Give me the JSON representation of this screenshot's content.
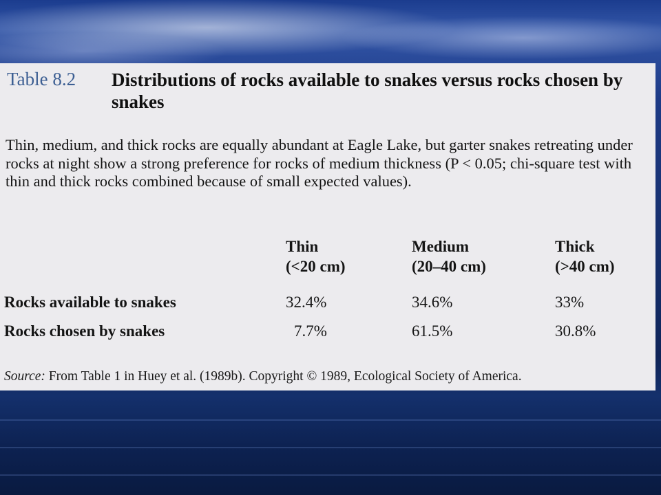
{
  "table": {
    "number": "Table 8.2",
    "title": "Distributions of rocks available to snakes versus rocks chosen by snakes",
    "caption": "Thin, medium, and thick rocks are equally abundant at Eagle Lake, but garter snakes retreating under rocks at night show a strong preference for rocks of medium thickness (P < 0.05; chi-square test with thin and thick rocks combined because of small expected values).",
    "columns": [
      {
        "name": "Thin",
        "range": "(<20 cm)"
      },
      {
        "name": "Medium",
        "range": "(20–40 cm)"
      },
      {
        "name": "Thick",
        "range": "(>40 cm)"
      }
    ],
    "rows": [
      {
        "label": "Rocks available to snakes",
        "values": [
          "32.4%",
          "34.6%",
          "33%"
        ]
      },
      {
        "label": "Rocks chosen by snakes",
        "values": [
          "7.7%",
          "61.5%",
          "30.8%"
        ]
      }
    ],
    "source_label": "Source:",
    "source_text": " From Table 1 in Huey et al. (1989b). Copyright © 1989, Ecological Society of America."
  }
}
